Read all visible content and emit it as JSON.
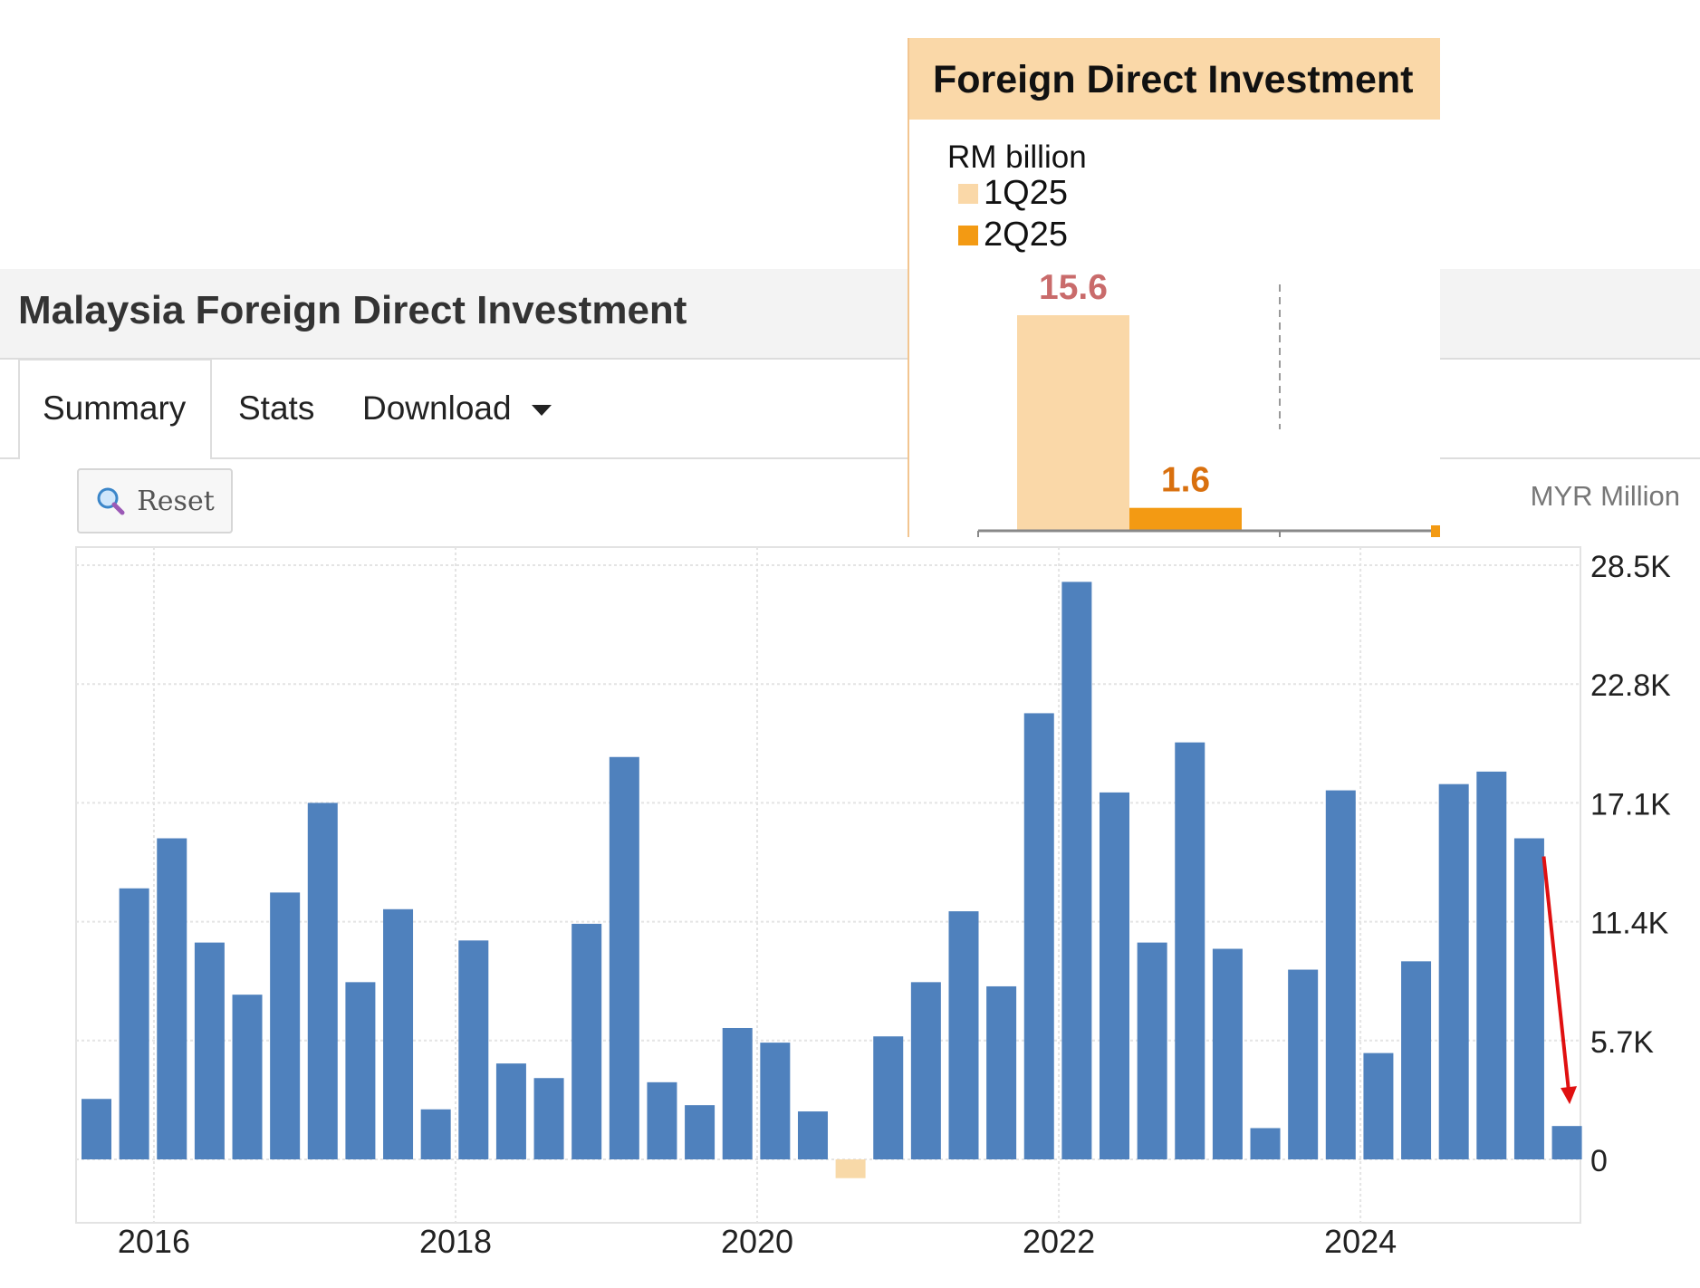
{
  "header": {
    "title": "Malaysia Foreign Direct Investment"
  },
  "tabs": [
    {
      "label": "Summary",
      "active": true
    },
    {
      "label": "Stats",
      "active": false
    },
    {
      "label": "Download",
      "active": false,
      "dropdown": true
    }
  ],
  "toolbar": {
    "reset_label": "Reset",
    "reset_icon": "magnifier-icon"
  },
  "colors": {
    "bar": "#4f81bd",
    "negative_bar": "#f8d9a8",
    "arrow": "#e01010",
    "inset_light": "#fad8a8",
    "inset_dark": "#f39a13",
    "label_15_6": "#c96b6b",
    "label_1_6": "#d9700e"
  },
  "chart_data": [
    {
      "type": "bar",
      "title": "Malaysia Foreign Direct Investment",
      "unit": "MYR Million",
      "x_tick_labels": [
        "2016",
        "2018",
        "2020",
        "2022",
        "2024"
      ],
      "y_tick_labels": [
        "0",
        "5.7K",
        "11.4K",
        "17.1K",
        "22.8K",
        "28.5K"
      ],
      "ylim": [
        -1000,
        28500
      ],
      "grid": true,
      "categories": [
        "2015Q3",
        "2015Q4",
        "2016Q1",
        "2016Q2",
        "2016Q3",
        "2016Q4",
        "2017Q1",
        "2017Q2",
        "2017Q3",
        "2017Q4",
        "2018Q1",
        "2018Q2",
        "2018Q3",
        "2018Q4",
        "2019Q1",
        "2019Q2",
        "2019Q3",
        "2019Q4",
        "2020Q1",
        "2020Q2",
        "2020Q3",
        "2020Q4",
        "2021Q1",
        "2021Q2",
        "2021Q3",
        "2021Q4",
        "2022Q1",
        "2022Q2",
        "2022Q3",
        "2022Q4",
        "2023Q1",
        "2023Q2",
        "2023Q3",
        "2023Q4",
        "2024Q1",
        "2024Q2",
        "2024Q3",
        "2024Q4",
        "2025Q1",
        "2025Q2"
      ],
      "values": [
        2900,
        13000,
        15400,
        10400,
        7900,
        12800,
        17100,
        8500,
        12000,
        2400,
        10500,
        4600,
        3900,
        11300,
        19300,
        3700,
        2600,
        6300,
        5600,
        2300,
        -900,
        5900,
        8500,
        11900,
        8300,
        21400,
        27700,
        17600,
        10400,
        20000,
        10100,
        1500,
        9100,
        17700,
        5100,
        9500,
        18000,
        18600,
        15400,
        1600
      ],
      "annotation": {
        "type": "arrow",
        "from_index": 38,
        "to_index": 39
      }
    },
    {
      "type": "bar",
      "title": "Foreign Direct Investment",
      "unit": "RM billion",
      "legend": [
        "1Q25",
        "2Q25"
      ],
      "categories": [
        "1Q25",
        "2Q25"
      ],
      "values": [
        15.6,
        1.6
      ],
      "data_labels": [
        "15.6",
        "1.6"
      ]
    }
  ]
}
